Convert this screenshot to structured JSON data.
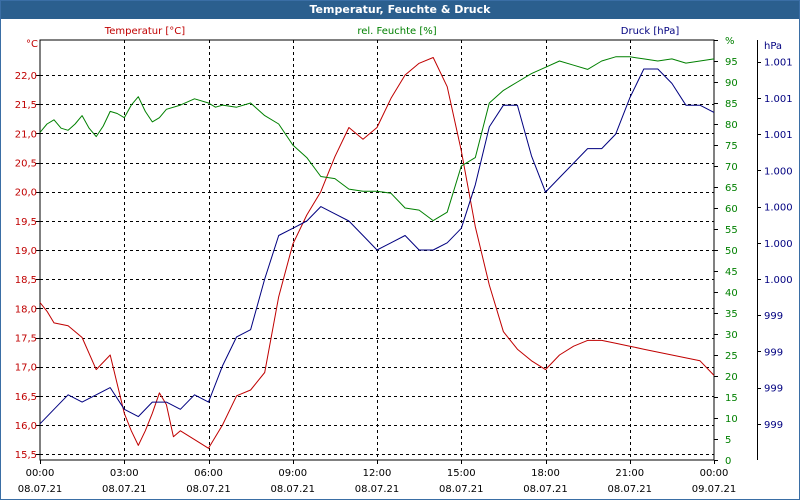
{
  "chart_data": {
    "type": "line",
    "title": "Temperatur, Feuchte & Druck",
    "x": {
      "range": [
        0,
        24
      ],
      "tick_hours": [
        0,
        3,
        6,
        9,
        12,
        15,
        18,
        21,
        24
      ],
      "tick_times": [
        "00:00",
        "03:00",
        "06:00",
        "09:00",
        "12:00",
        "15:00",
        "18:00",
        "21:00",
        "00:00"
      ],
      "tick_dates": [
        "08.07.21",
        "08.07.21",
        "08.07.21",
        "08.07.21",
        "08.07.21",
        "08.07.21",
        "08.07.21",
        "08.07.21",
        "09.07.21"
      ]
    },
    "axes": {
      "left": {
        "unit": "°C",
        "range": [
          15.4,
          22.6
        ],
        "tick_values": [
          15.5,
          16.0,
          16.5,
          17.0,
          17.5,
          18.0,
          18.5,
          19.0,
          19.5,
          20.0,
          20.5,
          21.0,
          21.5,
          22.0
        ],
        "tick_labels": [
          "15,5",
          "16,0",
          "16,5",
          "17,0",
          "17,5",
          "18,0",
          "18,5",
          "19,0",
          "19,5",
          "20,0",
          "20,5",
          "21,0",
          "21,5",
          "22,0"
        ],
        "color": "#c00000"
      },
      "right_humidity": {
        "unit": "%",
        "range": [
          0,
          100
        ],
        "tick_values": [
          0,
          5,
          10,
          15,
          20,
          25,
          30,
          35,
          40,
          45,
          50,
          55,
          60,
          65,
          70,
          75,
          80,
          85,
          90,
          95,
          100
        ],
        "tick_labels": [
          "0",
          "5",
          "10",
          "15",
          "20",
          "25",
          "30",
          "35",
          "40",
          "45",
          "50",
          "55",
          "60",
          "65",
          "70",
          "75",
          "80",
          "85",
          "90",
          "95",
          "%"
        ],
        "color": "#008000"
      },
      "right_pressure": {
        "unit": "hPa",
        "range": [
          998.6,
          1001.5
        ],
        "tick_values": [
          998.85,
          999.1,
          999.35,
          999.6,
          999.85,
          1000.1,
          1000.35,
          1000.6,
          1000.85,
          1001.1,
          1001.35
        ],
        "tick_labels": [
          "999",
          "999",
          "999",
          "999",
          "1.000",
          "1.000",
          "1.000",
          "1.000",
          "1.001",
          "1.001",
          "1.001"
        ],
        "color": "#000080"
      }
    },
    "series": [
      {
        "name": "Temperatur [°C]",
        "axis": "left",
        "color": "#c00000",
        "points": [
          [
            0.0,
            18.1
          ],
          [
            0.25,
            17.95
          ],
          [
            0.5,
            17.75
          ],
          [
            1.0,
            17.7
          ],
          [
            1.5,
            17.5
          ],
          [
            2.0,
            16.95
          ],
          [
            2.5,
            17.2
          ],
          [
            3.0,
            16.2
          ],
          [
            3.25,
            15.9
          ],
          [
            3.5,
            15.65
          ],
          [
            3.75,
            15.9
          ],
          [
            4.0,
            16.2
          ],
          [
            4.25,
            16.55
          ],
          [
            4.5,
            16.35
          ],
          [
            4.75,
            15.8
          ],
          [
            5.0,
            15.9
          ],
          [
            5.5,
            15.75
          ],
          [
            6.0,
            15.6
          ],
          [
            6.5,
            16.0
          ],
          [
            7.0,
            16.5
          ],
          [
            7.5,
            16.6
          ],
          [
            8.0,
            16.9
          ],
          [
            8.5,
            18.2
          ],
          [
            9.0,
            19.1
          ],
          [
            9.5,
            19.6
          ],
          [
            10.0,
            20.0
          ],
          [
            10.5,
            20.6
          ],
          [
            11.0,
            21.1
          ],
          [
            11.5,
            20.9
          ],
          [
            12.0,
            21.1
          ],
          [
            12.5,
            21.6
          ],
          [
            13.0,
            22.0
          ],
          [
            13.5,
            22.2
          ],
          [
            14.0,
            22.3
          ],
          [
            14.5,
            21.8
          ],
          [
            15.0,
            20.7
          ],
          [
            15.5,
            19.4
          ],
          [
            16.0,
            18.4
          ],
          [
            16.5,
            17.6
          ],
          [
            17.0,
            17.3
          ],
          [
            17.5,
            17.1
          ],
          [
            18.0,
            16.95
          ],
          [
            18.5,
            17.2
          ],
          [
            19.0,
            17.35
          ],
          [
            19.5,
            17.45
          ],
          [
            20.0,
            17.45
          ],
          [
            20.5,
            17.4
          ],
          [
            21.0,
            17.35
          ],
          [
            21.5,
            17.3
          ],
          [
            22.0,
            17.25
          ],
          [
            22.5,
            17.2
          ],
          [
            23.0,
            17.15
          ],
          [
            23.5,
            17.1
          ],
          [
            24.0,
            16.85
          ]
        ]
      },
      {
        "name": "rel. Feuchte [%]",
        "axis": "right_humidity",
        "color": "#008000",
        "points": [
          [
            0.0,
            78
          ],
          [
            0.25,
            80
          ],
          [
            0.5,
            81
          ],
          [
            0.75,
            79
          ],
          [
            1.0,
            78.5
          ],
          [
            1.25,
            80
          ],
          [
            1.5,
            82
          ],
          [
            1.75,
            79
          ],
          [
            2.0,
            77
          ],
          [
            2.25,
            79.5
          ],
          [
            2.5,
            83
          ],
          [
            2.75,
            82.5
          ],
          [
            3.0,
            81.5
          ],
          [
            3.25,
            84.5
          ],
          [
            3.5,
            86.5
          ],
          [
            3.75,
            83
          ],
          [
            4.0,
            80.5
          ],
          [
            4.25,
            81.5
          ],
          [
            4.5,
            83.5
          ],
          [
            5.0,
            84.5
          ],
          [
            5.5,
            86
          ],
          [
            6.0,
            85
          ],
          [
            6.25,
            84
          ],
          [
            6.5,
            84.5
          ],
          [
            7.0,
            84
          ],
          [
            7.5,
            85
          ],
          [
            8.0,
            82
          ],
          [
            8.5,
            80
          ],
          [
            9.0,
            75
          ],
          [
            9.5,
            72
          ],
          [
            10.0,
            67.5
          ],
          [
            10.5,
            67
          ],
          [
            11.0,
            64.5
          ],
          [
            11.5,
            64
          ],
          [
            12.0,
            64
          ],
          [
            12.5,
            63.5
          ],
          [
            13.0,
            60
          ],
          [
            13.5,
            59.5
          ],
          [
            14.0,
            57
          ],
          [
            14.5,
            59
          ],
          [
            15.0,
            70
          ],
          [
            15.5,
            72
          ],
          [
            16.0,
            85
          ],
          [
            16.5,
            88
          ],
          [
            17.0,
            90
          ],
          [
            17.5,
            92
          ],
          [
            18.0,
            93.5
          ],
          [
            18.5,
            95
          ],
          [
            19.0,
            94
          ],
          [
            19.5,
            93
          ],
          [
            20.0,
            95
          ],
          [
            20.5,
            96
          ],
          [
            21.0,
            96
          ],
          [
            21.5,
            95.5
          ],
          [
            22.0,
            95
          ],
          [
            22.5,
            95.5
          ],
          [
            23.0,
            94.5
          ],
          [
            23.5,
            95
          ],
          [
            24.0,
            95.5
          ]
        ]
      },
      {
        "name": "Druck [hPa]",
        "axis": "right_pressure",
        "color": "#000080",
        "points": [
          [
            0.0,
            998.85
          ],
          [
            0.5,
            998.95
          ],
          [
            1.0,
            999.05
          ],
          [
            1.5,
            999.0
          ],
          [
            2.0,
            999.05
          ],
          [
            2.5,
            999.1
          ],
          [
            3.0,
            998.95
          ],
          [
            3.5,
            998.9
          ],
          [
            4.0,
            999.0
          ],
          [
            4.5,
            999.0
          ],
          [
            5.0,
            998.95
          ],
          [
            5.5,
            999.05
          ],
          [
            6.0,
            999.0
          ],
          [
            6.5,
            999.25
          ],
          [
            7.0,
            999.45
          ],
          [
            7.5,
            999.5
          ],
          [
            8.0,
            999.85
          ],
          [
            8.5,
            1000.15
          ],
          [
            9.0,
            1000.2
          ],
          [
            9.5,
            1000.25
          ],
          [
            10.0,
            1000.35
          ],
          [
            10.5,
            1000.3
          ],
          [
            11.0,
            1000.25
          ],
          [
            11.5,
            1000.15
          ],
          [
            12.0,
            1000.05
          ],
          [
            12.5,
            1000.1
          ],
          [
            13.0,
            1000.15
          ],
          [
            13.5,
            1000.05
          ],
          [
            14.0,
            1000.05
          ],
          [
            14.5,
            1000.1
          ],
          [
            15.0,
            1000.2
          ],
          [
            15.5,
            1000.5
          ],
          [
            16.0,
            1000.9
          ],
          [
            16.5,
            1001.05
          ],
          [
            17.0,
            1001.05
          ],
          [
            17.5,
            1000.7
          ],
          [
            18.0,
            1000.45
          ],
          [
            18.5,
            1000.55
          ],
          [
            19.0,
            1000.65
          ],
          [
            19.5,
            1000.75
          ],
          [
            20.0,
            1000.75
          ],
          [
            20.5,
            1000.85
          ],
          [
            21.0,
            1001.1
          ],
          [
            21.5,
            1001.3
          ],
          [
            22.0,
            1001.3
          ],
          [
            22.5,
            1001.2
          ],
          [
            23.0,
            1001.05
          ],
          [
            23.5,
            1001.05
          ],
          [
            24.0,
            1001.0
          ]
        ]
      }
    ]
  }
}
